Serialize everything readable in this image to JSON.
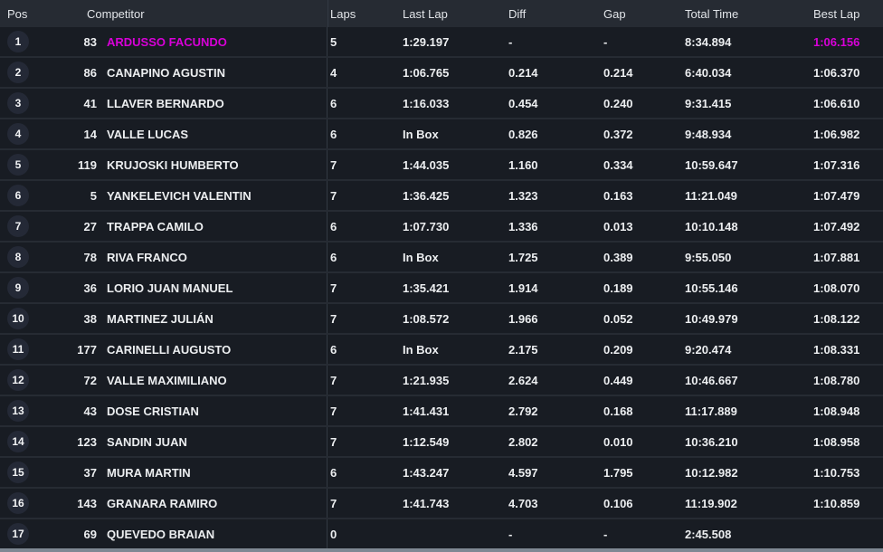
{
  "colors": {
    "header_bg": "#262b33",
    "row_bg": "#181c23",
    "row_separator": "#262b33",
    "fixed_column_divider": "#323943",
    "pos_circle_bg": "#242936",
    "text_primary": "#eceef0",
    "leader_highlight": "#d800d8",
    "scrollbar": "#7f8893"
  },
  "columns": [
    {
      "key": "pos",
      "label": "Pos"
    },
    {
      "key": "competitor",
      "label": "Competitor"
    },
    {
      "key": "laps",
      "label": "Laps"
    },
    {
      "key": "last_lap",
      "label": "Last Lap"
    },
    {
      "key": "diff",
      "label": "Diff"
    },
    {
      "key": "gap",
      "label": "Gap"
    },
    {
      "key": "total_time",
      "label": "Total Time"
    },
    {
      "key": "best_lap",
      "label": "Best Lap"
    }
  ],
  "rows": [
    {
      "pos": "1",
      "num": "83",
      "name": "ARDUSSO FACUNDO",
      "laps": "5",
      "last_lap": "1:29.197",
      "diff": "-",
      "gap": "-",
      "total_time": "8:34.894",
      "best_lap": "1:06.156",
      "highlight": true
    },
    {
      "pos": "2",
      "num": "86",
      "name": "CANAPINO AGUSTIN",
      "laps": "4",
      "last_lap": "1:06.765",
      "diff": "0.214",
      "gap": "0.214",
      "total_time": "6:40.034",
      "best_lap": "1:06.370",
      "highlight": false
    },
    {
      "pos": "3",
      "num": "41",
      "name": "LLAVER BERNARDO",
      "laps": "6",
      "last_lap": "1:16.033",
      "diff": "0.454",
      "gap": "0.240",
      "total_time": "9:31.415",
      "best_lap": "1:06.610",
      "highlight": false
    },
    {
      "pos": "4",
      "num": "14",
      "name": "VALLE LUCAS",
      "laps": "6",
      "last_lap": "In Box",
      "diff": "0.826",
      "gap": "0.372",
      "total_time": "9:48.934",
      "best_lap": "1:06.982",
      "highlight": false
    },
    {
      "pos": "5",
      "num": "119",
      "name": "KRUJOSKI HUMBERTO",
      "laps": "7",
      "last_lap": "1:44.035",
      "diff": "1.160",
      "gap": "0.334",
      "total_time": "10:59.647",
      "best_lap": "1:07.316",
      "highlight": false
    },
    {
      "pos": "6",
      "num": "5",
      "name": "YANKELEVICH VALENTIN",
      "laps": "7",
      "last_lap": "1:36.425",
      "diff": "1.323",
      "gap": "0.163",
      "total_time": "11:21.049",
      "best_lap": "1:07.479",
      "highlight": false
    },
    {
      "pos": "7",
      "num": "27",
      "name": "TRAPPA CAMILO",
      "laps": "6",
      "last_lap": "1:07.730",
      "diff": "1.336",
      "gap": "0.013",
      "total_time": "10:10.148",
      "best_lap": "1:07.492",
      "highlight": false
    },
    {
      "pos": "8",
      "num": "78",
      "name": "RIVA FRANCO",
      "laps": "6",
      "last_lap": "In Box",
      "diff": "1.725",
      "gap": "0.389",
      "total_time": "9:55.050",
      "best_lap": "1:07.881",
      "highlight": false
    },
    {
      "pos": "9",
      "num": "36",
      "name": "LORIO JUAN MANUEL",
      "laps": "7",
      "last_lap": "1:35.421",
      "diff": "1.914",
      "gap": "0.189",
      "total_time": "10:55.146",
      "best_lap": "1:08.070",
      "highlight": false
    },
    {
      "pos": "10",
      "num": "38",
      "name": "MARTINEZ JULIÁN",
      "laps": "7",
      "last_lap": "1:08.572",
      "diff": "1.966",
      "gap": "0.052",
      "total_time": "10:49.979",
      "best_lap": "1:08.122",
      "highlight": false
    },
    {
      "pos": "11",
      "num": "177",
      "name": "CARINELLI AUGUSTO",
      "laps": "6",
      "last_lap": "In Box",
      "diff": "2.175",
      "gap": "0.209",
      "total_time": "9:20.474",
      "best_lap": "1:08.331",
      "highlight": false
    },
    {
      "pos": "12",
      "num": "72",
      "name": "VALLE MAXIMILIANO",
      "laps": "7",
      "last_lap": "1:21.935",
      "diff": "2.624",
      "gap": "0.449",
      "total_time": "10:46.667",
      "best_lap": "1:08.780",
      "highlight": false
    },
    {
      "pos": "13",
      "num": "43",
      "name": "DOSE CRISTIAN",
      "laps": "7",
      "last_lap": "1:41.431",
      "diff": "2.792",
      "gap": "0.168",
      "total_time": "11:17.889",
      "best_lap": "1:08.948",
      "highlight": false
    },
    {
      "pos": "14",
      "num": "123",
      "name": "SANDIN JUAN",
      "laps": "7",
      "last_lap": "1:12.549",
      "diff": "2.802",
      "gap": "0.010",
      "total_time": "10:36.210",
      "best_lap": "1:08.958",
      "highlight": false
    },
    {
      "pos": "15",
      "num": "37",
      "name": "MURA MARTIN",
      "laps": "6",
      "last_lap": "1:43.247",
      "diff": "4.597",
      "gap": "1.795",
      "total_time": "10:12.982",
      "best_lap": "1:10.753",
      "highlight": false
    },
    {
      "pos": "16",
      "num": "143",
      "name": "GRANARA RAMIRO",
      "laps": "7",
      "last_lap": "1:41.743",
      "diff": "4.703",
      "gap": "0.106",
      "total_time": "11:19.902",
      "best_lap": "1:10.859",
      "highlight": false
    },
    {
      "pos": "17",
      "num": "69",
      "name": "QUEVEDO BRAIAN",
      "laps": "0",
      "last_lap": "",
      "diff": "-",
      "gap": "-",
      "total_time": "2:45.508",
      "best_lap": "",
      "highlight": false
    }
  ]
}
